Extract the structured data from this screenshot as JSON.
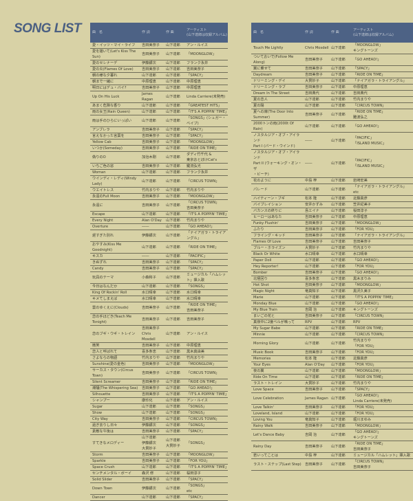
{
  "title": "SONG LIST",
  "header": [
    "曲　名",
    "作 詞",
    "作 曲",
    "アーティスト\n(山下達郎は収録アルバム)"
  ],
  "left": [
    [
      "愛・イッツ・マイ・ライフ",
      "吉田美奈子",
      "山下達郎",
      "アン・ルイス"
    ],
    [
      "愛を描いて(Let's Kiss The Sun)",
      "吉田美奈子",
      "山下達郎",
      "「MOONGLOW」"
    ],
    [
      "愛のセレナーデ",
      "伊藤銀次",
      "山下達郎",
      "フランク永井"
    ],
    [
      "愛の炎(Flames Of Love)",
      "吉田美奈子",
      "山下達郎",
      "吉田美奈子"
    ],
    [
      "朝の様な夕暮れ",
      "山下達郎",
      "山下達郎",
      "「SPACY」"
    ],
    [
      "朝まで一緒に",
      "中原理恵",
      "山下達郎",
      "中原理恵"
    ],
    [
      "明日にはデュ・バイ?",
      "吉田美奈子",
      "山下達郎",
      "中原理恵"
    ],
    [
      "Up On His Luck",
      "James Ragan",
      "山下達郎",
      "Linda Carriere(未発売)"
    ],
    [
      "あまく危険な香り",
      "山下達郎",
      "山下達郎",
      "「GREATEST HITS」"
    ],
    [
      "雨の女王(Rain Queen)",
      "山下達郎",
      "山下達郎",
      "「IT'S A POPPIN' TIME」"
    ],
    [
      "雨は手のひらにいっぱい",
      "山下達郎",
      "山下達郎",
      "「SONGS」(シュガー・ベイブ)"
    ],
    [
      "アンブレラ",
      "吉田美奈子",
      "山下達郎",
      "「SPACY」"
    ],
    [
      "言えなかった言葉を",
      "吉田美奈子",
      "山下達郎",
      "「SPACY」"
    ],
    [
      "Yellow Cab",
      "吉田美奈子",
      "山下達郎",
      "「MOONGLOW」"
    ],
    [
      "いつか(Someday)",
      "吉田美奈子",
      "山下達郎",
      "「RIDE ON TIME」"
    ],
    [
      "偽りのO",
      "加治木剛",
      "山下達郎",
      "ダディ竹千代 &\n東京おとぼけCat's"
    ],
    [
      "いちご色の窓",
      "吉田美奈子",
      "山下達郎",
      "鍵流弘光"
    ],
    [
      "Woman",
      "山下達郎",
      "山下達郎",
      "フランク永井"
    ],
    [
      "ウインディ・レディ(Windy Lady)",
      "山下達郎",
      "山下達郎",
      "「CIRCUS TOWN」"
    ],
    [
      "ウエイトレス",
      "竹内まりや",
      "山下達郎",
      "竹内まりや"
    ],
    [
      "永遠のFull Moon",
      "吉田美奈子",
      "山下達郎",
      "「MOONGLOW」"
    ],
    [
      "永遠に",
      "吉田美奈子",
      "山下達郎",
      "「CIRCUS TOWN」\n吉田美奈子"
    ],
    [
      "Escape",
      "山下達郎",
      "山下達郎",
      "「IT'S A POPPIN' TIME」"
    ],
    [
      "Every Night",
      "Alan O'Day",
      "山下達郎",
      "竹内まりや"
    ],
    [
      "Overture",
      "――",
      "山下達郎",
      "「GO AHEAD!」"
    ],
    [
      "遅すぎた別れ",
      "伊藤銀次",
      "山下達郎",
      "「ナイアガラ・トライアングル」"
    ],
    [
      "おやすみ(Kiss Me Goodnight)",
      "山下達郎",
      "山下達郎",
      "「RIDE ON TIME」"
    ],
    [
      "キスカ",
      "――",
      "山下達郎",
      "「PACIFIC」"
    ],
    [
      "きぬずれ",
      "吉田美奈子",
      "山下達郎",
      "「SPACY」"
    ],
    [
      "Candy",
      "吉田美奈子",
      "山下達郎",
      "「SPACY」"
    ],
    [
      "玩具のテーマ",
      "小森和子",
      "山下達郎",
      "ミュージカル「ハムレット」挿入歌"
    ],
    [
      "今日はなんだか",
      "山下達郎",
      "山下達郎",
      "「SONGS」"
    ],
    [
      "King Of Rockin' Roll",
      "水口晴幸",
      "山下達郎",
      "水口晴幸"
    ],
    [
      "キメてしまえば",
      "水口晴幸",
      "山下達郎",
      "水口晴幸"
    ],
    [
      "雲のゆくえに(Clouds)",
      "吉田美奈子",
      "山下達郎",
      "「RIDE ON TIME」\n吉田美奈子"
    ],
    [
      "恋の手ほどき(Teach Me Tonight)",
      "吉田美奈子",
      "山下達郎",
      "吉田美奈子"
    ],
    [
      "恋のブギ・ウギ・トレイン",
      "吉田美奈子\nChris Mosdell",
      "山下達郎",
      "アン・ルイス"
    ],
    [
      "微笑",
      "吉田美奈子",
      "山下達郎",
      "中原理恵"
    ],
    [
      "恋人と呼ばれて",
      "喜多条忠",
      "山下達郎",
      "黒木真由美"
    ],
    [
      "さよならの物語",
      "竹内まりや",
      "山下達郎",
      "竹内まりや"
    ],
    [
      "Sunshine(愛の金色)",
      "吉田美奈子",
      "山下達郎",
      "「MOONGLOW」"
    ],
    [
      "サーカス・タウン(Circus Town)",
      "吉田美奈子",
      "山下達郎",
      "「CIRCUS TOWN」"
    ],
    [
      "Silent Screamer",
      "吉田美奈子",
      "山下達郎",
      "「RIDE ON TIME」"
    ],
    [
      "潮騒(The Whispering Sea)",
      "吉田美奈子",
      "山下達郎",
      "「GO AHEAD!」"
    ],
    [
      "Silhouette",
      "吉田美奈子",
      "山下達郎",
      "「IT'S A POPPIN' TIME」"
    ],
    [
      "シャンプー",
      "康珍化",
      "山下達郎",
      "アン・ルイス"
    ],
    [
      "Sugar",
      "山下達郎",
      "山下達郎",
      "「SONGS」"
    ],
    [
      "Show",
      "山下達郎",
      "山下達郎",
      "「SONGS」"
    ],
    [
      "City Way",
      "吉田美奈子",
      "山下達郎",
      "「CIRCUS TOWN」"
    ],
    [
      "過ぎ去りし日々",
      "伊藤銀次",
      "山下達郎",
      "「SONGS」"
    ],
    [
      "素敵な午後は",
      "吉田美奈子",
      "山下達郎",
      "「SPACY」"
    ],
    [
      "すてきなメロディー",
      "山下達郎\n伊藤銀次\n大貫妙子",
      "山下達郎\n大貫妙子",
      "「SONGS」"
    ],
    [
      "Storm",
      "吉田美奈子",
      "山下達郎",
      "「MOONGLOW」"
    ],
    [
      "Sparkle",
      "吉田美奈子",
      "山下達郎",
      "「FOR YOU」"
    ],
    [
      "Space Crush",
      "山下達郎",
      "山下達郎",
      "「IT'S A POPPIN' TIME」"
    ],
    [
      "センチメンタル・ボーイ",
      "森沢 修",
      "山下達郎",
      "桜田淳子"
    ],
    [
      "Solid Slider",
      "吉田美奈子",
      "山下達郎",
      "「SPACY」"
    ],
    [
      "Down Town",
      "伊藤銀次",
      "山下達郎",
      "「SONGS」\netc"
    ],
    [
      "Dancer",
      "山下達郎",
      "山下達郎",
      "「SPACY」"
    ]
  ],
  "right": [
    [
      "Touch Me Lightly",
      "Chris Mosdell",
      "山下達郎",
      "「MOONGLOW」\nキングトーンズ"
    ],
    [
      "ついておいで(Follow Me Along)",
      "吉田美奈子",
      "山下達郎",
      "「GO AHEAD!」"
    ],
    [
      "翼に乗せて",
      "吉田美奈子",
      "山下達郎",
      "「SPACY」"
    ],
    [
      "Daydream",
      "吉田美奈子",
      "山下達郎",
      "「RIDE ON TIME」"
    ],
    [
      "ドリーミング・デイ",
      "大貫妙子",
      "山下達郎",
      "「ナイアガラ・トライアングル」"
    ],
    [
      "ドリーミング・ラブ",
      "吉田美奈子",
      "山下達郎",
      "中原理恵"
    ],
    [
      "Dream In The Street",
      "吉田典代",
      "山下達郎",
      "吉田典代"
    ],
    [
      "夏の恋人",
      "山下達郎",
      "山下達郎",
      "竹内まりや"
    ],
    [
      "夏の陽",
      "山下達郎",
      "山下達郎",
      "「CIRCUS TOWN」"
    ],
    [
      "夏への扉(The Door Into Summer)",
      "吉田美奈子",
      "山下達郎",
      "「RIDE ON TIME」\n難波弘之"
    ],
    [
      "2000トンの雨(2000t Of Rain)",
      "山下達郎",
      "山下達郎",
      "「GO AHEAD!」"
    ],
    [
      "ノスタルジア・オブ・アイランド\nPart I (バード・ウインド)",
      "――",
      "山下達郎",
      "「PACIFIC」\n「ISLAND MUSIC」"
    ],
    [
      "ノスタルジア・オブ・アイランド\nPart II (ウォーキング・オン・ザ\n・ビーチ)",
      "――",
      "山下達郎",
      "「PACIFIC」\n「ISLAND MUSIC」"
    ],
    [
      "花のように",
      "中島 梓",
      "山下達郎",
      "岩崎宏美"
    ],
    [
      "パレード",
      "山下達郎",
      "山下達郎",
      "「ナイアガラ・トライアングル」\netc"
    ],
    [
      "ハイティーン・ブギ",
      "松本 隆",
      "山下達郎",
      "近藤真彦"
    ],
    [
      "バイブレイション",
      "安井かずみ",
      "山下達郎",
      "笠井紀美子"
    ],
    [
      "バカンスの終りに",
      "島エイナ",
      "山下達郎",
      "桜田淳子"
    ],
    [
      "ヒーローはあなた",
      "吉田美奈子",
      "山下達郎",
      "中原理恵"
    ],
    [
      "Funky Flushin'",
      "吉田美奈子",
      "山下達郎",
      "「MOONGLOW」"
    ],
    [
      "ふたり",
      "吉田美奈子",
      "山下達郎",
      "「FOR YOU」"
    ],
    [
      "フライング・キッド",
      "吉田美奈子",
      "山下達郎",
      "「ナイアガラ・トライアングル」"
    ],
    [
      "Flames Of Love",
      "吉田美奈子",
      "山下達郎",
      "吉田美奈子"
    ],
    [
      "ブルー・ホライズン",
      "大貫妙子",
      "山下達郎",
      "竹内まりや"
    ],
    [
      "Black Or White",
      "水口晴幸",
      "山下達郎",
      "水口晴幸"
    ],
    [
      "Paper Doll",
      "山下達郎",
      "山下達郎",
      "「GO AHEAD!」"
    ],
    [
      "Hey Reporter!",
      "山下達郎",
      "山下達郎",
      "「FOR YOU」"
    ],
    [
      "Bomber",
      "吉田美奈子",
      "山下達郎",
      "「GO AHEAD!」"
    ],
    [
      "北極回り",
      "喜多条忠",
      "山下達郎",
      "黒木まりみ"
    ],
    [
      "Hot Shot",
      "吉田美奈子",
      "山下達郎",
      "「MOONGLOW」"
    ],
    [
      "Magic Night",
      "竜真知子",
      "山下達郎",
      "黒沢久美子"
    ],
    [
      "Marie",
      "山下達郎",
      "山下達郎",
      "「IT'S A POPPIN' TIME」"
    ],
    [
      "Monday Blue",
      "山下達郎",
      "山下達郎",
      "「GO AHEAD!」"
    ],
    [
      "My Blue Train",
      "吉岡 治",
      "山下達郎",
      "キングトーンズ"
    ],
    [
      "まいごの花と",
      "吉田美奈子",
      "山下達郎",
      "「CIRCUS TOWN」"
    ],
    [
      "真夜中に2度ベルが鳴って",
      "RPV",
      "山下達郎",
      "RPV"
    ],
    [
      "My Sugar Babe",
      "山下達郎",
      "山下達郎",
      "「RIDE ON TIME」"
    ],
    [
      "Minnie",
      "山下達郎",
      "山下達郎",
      "「CIRCUS TOWN」"
    ],
    [
      "Morning Glory",
      "山下達郎",
      "山下達郎",
      "竹内まりや\n「FOR YOU」"
    ],
    [
      "Music Book",
      "吉田美奈子",
      "山下達郎",
      "「FOR YOU」"
    ],
    [
      "Memories",
      "松本 隆",
      "山下達郎",
      "近藤真彦"
    ],
    [
      "Your Eyes",
      "Alan O'Day",
      "山下達郎",
      "「FOR YOU」"
    ],
    [
      "夜の翼",
      "山下達郎",
      "山下達郎",
      "「MOONGLOW」"
    ],
    [
      "Ride On Time",
      "山下達郎",
      "山下達郎",
      "「RIDE ON TIME」"
    ],
    [
      "ラスト・トレイン",
      "大貫妙子",
      "山下達郎",
      "竹内まりや"
    ],
    [
      "Love Space",
      "吉田美奈子",
      "山下達郎",
      "「SPACY」"
    ],
    [
      "Love Celebration",
      "James Ragan",
      "山下達郎",
      "「GO AHEAD!」\nLinda Carriere(未発売)"
    ],
    [
      "Love Talkin'",
      "吉田美奈子",
      "山下達郎",
      "「FOR YOU」"
    ],
    [
      "Loveland, Island",
      "山下達郎",
      "山下達郎",
      "「FOR YOU」"
    ],
    [
      "Loving You",
      "竜真知子",
      "山下達郎",
      "堀川まゆみ"
    ],
    [
      "Rainy Walk",
      "吉田美奈子",
      "山下達郎",
      "「MOONGLOW」"
    ],
    [
      "Let's Dance Baby",
      "吉岡 治",
      "山下達郎",
      "「GO AHEAD!」\nキングトーンズ"
    ],
    [
      "Rainy Day",
      "吉田美奈子",
      "山下達郎",
      "「RIDE ON TIME」\n吉田美奈子"
    ],
    [
      "若いってことは",
      "中島 梓",
      "山下達郎",
      "ミュージカル「ハムレット」挿入歌"
    ],
    [
      "ラスト・ステップ(Last Step)",
      "吉田美奈子",
      "山下達郎",
      "「CIRCUS TOWN」\n吉田美奈子"
    ]
  ]
}
